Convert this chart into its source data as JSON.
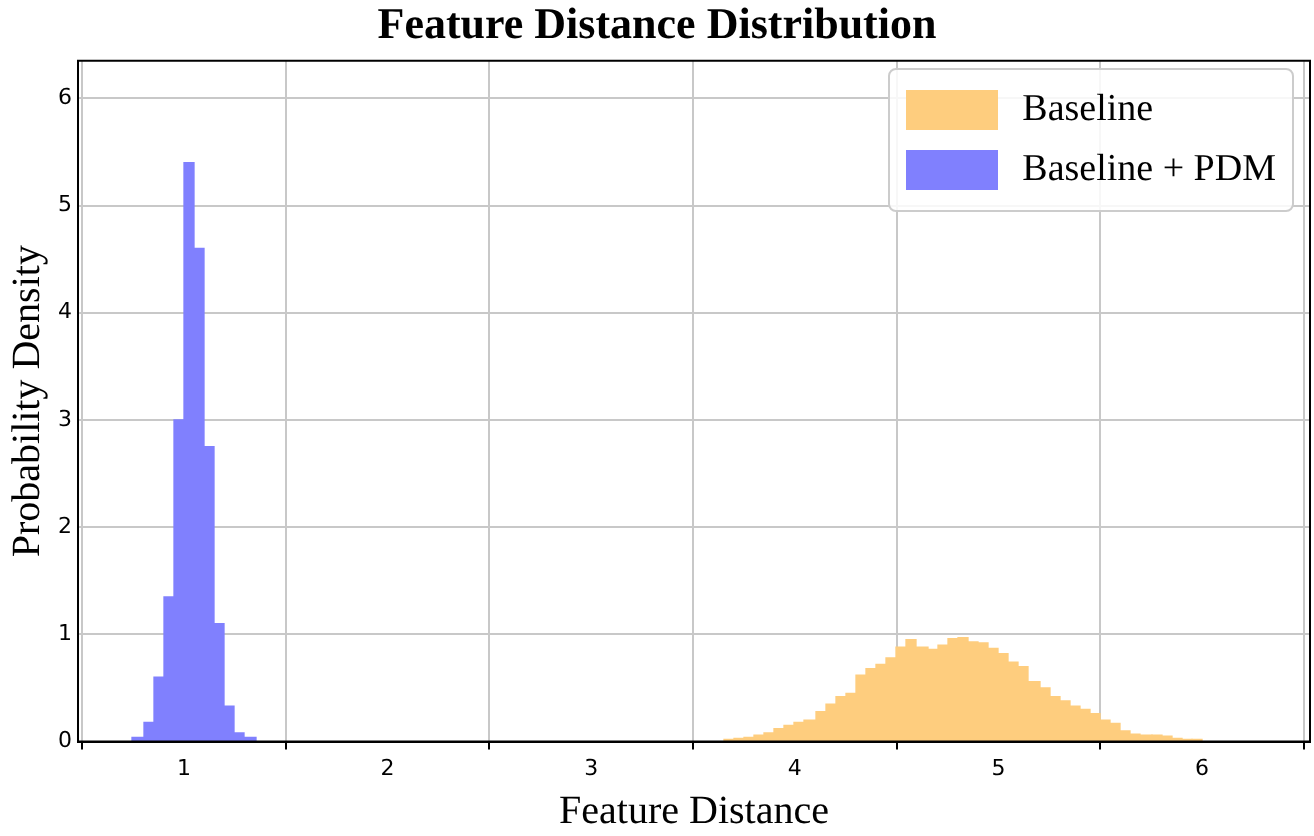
{
  "chart_data": {
    "type": "histogram",
    "title": "Feature Distance Distribution",
    "xlabel": "Feature Distance",
    "ylabel": "Probability Density",
    "xlim": [
      0.48,
      6.53
    ],
    "ylim": [
      0,
      6.35
    ],
    "xticks": [
      1,
      2,
      3,
      4,
      5,
      6
    ],
    "yticks": [
      0,
      1,
      2,
      3,
      4,
      5,
      6
    ],
    "grid": true,
    "legend": "top right",
    "bins": [
      0.75,
      0.8,
      0.85,
      0.9,
      0.95,
      1.0,
      1.05,
      1.1,
      1.15,
      1.2,
      1.25,
      1.3,
      1.35,
      3.65,
      3.7,
      3.75,
      3.8,
      3.85,
      3.9,
      3.95,
      4.0,
      4.05,
      4.1,
      4.15,
      4.2,
      4.25,
      4.3,
      4.35,
      4.4,
      4.45,
      4.5,
      4.55,
      4.6,
      4.65,
      4.7,
      4.75,
      4.8,
      4.85,
      4.9,
      4.95,
      5.0,
      5.05,
      5.1,
      5.15,
      5.2,
      5.25,
      5.3,
      5.35,
      5.4,
      5.45,
      5.5,
      5.55,
      5.6,
      5.65,
      5.7,
      5.75,
      5.8,
      5.85,
      5.9,
      5.95,
      6.0
    ],
    "series": [
      {
        "name": "Baseline",
        "color": "#fecd7e",
        "values": [
          null,
          null,
          null,
          null,
          null,
          null,
          null,
          null,
          null,
          null,
          null,
          null,
          null,
          0.02,
          0.03,
          0.04,
          0.06,
          0.08,
          0.12,
          0.15,
          0.18,
          0.2,
          0.28,
          0.35,
          0.42,
          0.45,
          0.62,
          0.68,
          0.72,
          0.78,
          0.88,
          0.95,
          0.88,
          0.86,
          0.9,
          0.96,
          0.97,
          0.93,
          0.92,
          0.87,
          0.82,
          0.74,
          0.7,
          0.56,
          0.5,
          0.42,
          0.38,
          0.33,
          0.3,
          0.26,
          0.2,
          0.17,
          0.1,
          0.07,
          0.06,
          0.06,
          0.05,
          0.03,
          0.02,
          0.02
        ]
      },
      {
        "name": "Baseline + PDM",
        "color": "#8080fe",
        "values": [
          0.04,
          0.18,
          0.6,
          1.35,
          3.0,
          5.4,
          4.6,
          2.75,
          1.1,
          0.33,
          0.08,
          0.04,
          null,
          null,
          null,
          null,
          null,
          null,
          null,
          null,
          null,
          null,
          null,
          null,
          null,
          null,
          null,
          null,
          null,
          null,
          null,
          null,
          null,
          null,
          null,
          null,
          null,
          null,
          null,
          null,
          null,
          null,
          null,
          null,
          null,
          null,
          null,
          null,
          null,
          null,
          null,
          null,
          null,
          null,
          null,
          null,
          null,
          null,
          null,
          null
        ]
      }
    ]
  }
}
